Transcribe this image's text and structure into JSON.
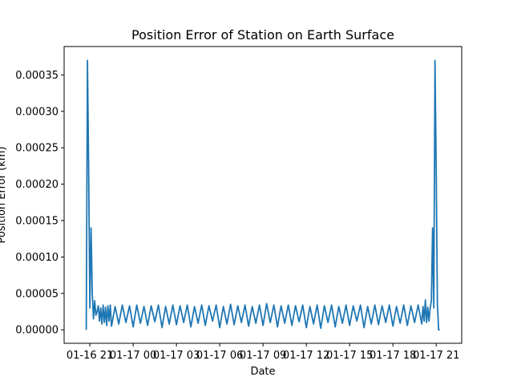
{
  "chart_data": {
    "type": "line",
    "title": "Position Error of Station on Earth Surface",
    "xlabel": "Date",
    "ylabel": "Position Error (km)",
    "x_tick_labels": [
      "01-16 21",
      "01-17 00",
      "01-17 03",
      "01-17 06",
      "01-17 09",
      "01-17 12",
      "01-17 15",
      "01-17 18",
      "01-17 21"
    ],
    "y_tick_labels": [
      "0.00000",
      "0.00005",
      "0.00010",
      "0.00015",
      "0.00020",
      "0.00025",
      "0.00030",
      "0.00035"
    ],
    "xlim": [
      "2024-01-16 19:13",
      "2024-01-17 22:46"
    ],
    "ylim": [
      -1.85e-05,
      0.000389
    ],
    "grid": false,
    "legend": "none",
    "series": [
      {
        "color": "#1f77b4",
        "x": [
          "2024-01-16 20:45",
          "2024-01-16 20:50",
          "2024-01-16 20:55",
          "2024-01-16 21:00",
          "2024-01-16 21:05",
          "2024-01-16 21:10",
          "2024-01-16 21:15",
          "2024-01-16 21:20",
          "2024-01-16 21:25",
          "2024-01-16 21:30",
          "2024-01-16 21:35",
          "2024-01-16 21:40",
          "2024-01-16 21:45",
          "2024-01-16 21:50",
          "2024-01-16 21:55",
          "2024-01-16 22:00",
          "2024-01-16 22:05",
          "2024-01-16 22:10",
          "2024-01-16 22:15",
          "2024-01-16 22:20",
          "2024-01-16 22:25",
          "2024-01-16 22:30",
          "2024-01-16 22:45",
          "2024-01-16 23:00",
          "2024-01-16 23:15",
          "2024-01-16 23:30",
          "2024-01-16 23:45",
          "2024-01-17 00:00",
          "2024-01-17 00:15",
          "2024-01-17 00:30",
          "2024-01-17 00:45",
          "2024-01-17 01:00",
          "2024-01-17 01:15",
          "2024-01-17 01:30",
          "2024-01-17 01:45",
          "2024-01-17 02:00",
          "2024-01-17 02:15",
          "2024-01-17 02:30",
          "2024-01-17 02:45",
          "2024-01-17 03:00",
          "2024-01-17 03:15",
          "2024-01-17 03:30",
          "2024-01-17 03:45",
          "2024-01-17 04:00",
          "2024-01-17 04:15",
          "2024-01-17 04:30",
          "2024-01-17 04:45",
          "2024-01-17 05:00",
          "2024-01-17 05:15",
          "2024-01-17 05:30",
          "2024-01-17 05:45",
          "2024-01-17 06:00",
          "2024-01-17 06:15",
          "2024-01-17 06:30",
          "2024-01-17 06:45",
          "2024-01-17 07:00",
          "2024-01-17 07:15",
          "2024-01-17 07:30",
          "2024-01-17 07:45",
          "2024-01-17 08:00",
          "2024-01-17 08:15",
          "2024-01-17 08:30",
          "2024-01-17 08:45",
          "2024-01-17 09:00",
          "2024-01-17 09:15",
          "2024-01-17 09:30",
          "2024-01-17 09:45",
          "2024-01-17 10:00",
          "2024-01-17 10:15",
          "2024-01-17 10:30",
          "2024-01-17 10:45",
          "2024-01-17 11:00",
          "2024-01-17 11:15",
          "2024-01-17 11:30",
          "2024-01-17 11:45",
          "2024-01-17 12:00",
          "2024-01-17 12:15",
          "2024-01-17 12:30",
          "2024-01-17 12:45",
          "2024-01-17 13:00",
          "2024-01-17 13:15",
          "2024-01-17 13:30",
          "2024-01-17 13:45",
          "2024-01-17 14:00",
          "2024-01-17 14:15",
          "2024-01-17 14:30",
          "2024-01-17 14:45",
          "2024-01-17 15:00",
          "2024-01-17 15:15",
          "2024-01-17 15:30",
          "2024-01-17 15:45",
          "2024-01-17 16:00",
          "2024-01-17 16:15",
          "2024-01-17 16:30",
          "2024-01-17 16:45",
          "2024-01-17 17:00",
          "2024-01-17 17:15",
          "2024-01-17 17:30",
          "2024-01-17 17:45",
          "2024-01-17 18:00",
          "2024-01-17 18:15",
          "2024-01-17 18:30",
          "2024-01-17 18:45",
          "2024-01-17 19:00",
          "2024-01-17 19:15",
          "2024-01-17 19:30",
          "2024-01-17 19:45",
          "2024-01-17 20:00",
          "2024-01-17 20:05",
          "2024-01-17 20:10",
          "2024-01-17 20:15",
          "2024-01-17 20:20",
          "2024-01-17 20:25",
          "2024-01-17 20:30",
          "2024-01-17 20:35",
          "2024-01-17 20:40",
          "2024-01-17 20:45",
          "2024-01-17 20:50",
          "2024-01-17 20:55",
          "2024-01-17 21:00",
          "2024-01-17 21:05",
          "2024-01-17 21:10",
          "2024-01-17 21:15"
        ],
        "y": [
          0.0,
          0.00037,
          0.00022,
          3e-05,
          0.00014,
          5e-05,
          1.5e-05,
          4e-05,
          2e-05,
          2.5e-05,
          3.3e-05,
          1.2e-05,
          3e-05,
          8e-06,
          3.4e-05,
          1e-05,
          3.1e-05,
          6e-06,
          3.3e-05,
          1.2e-05,
          3.4e-05,
          5e-06,
          3.2e-05,
          8e-06,
          3.4e-05,
          1e-05,
          3.3e-05,
          4e-06,
          3.4e-05,
          9e-06,
          3.2e-05,
          6e-06,
          3.3e-05,
          1.1e-05,
          3.4e-05,
          3e-06,
          3.2e-05,
          8e-06,
          3.4e-05,
          7e-06,
          3.3e-05,
          1e-05,
          3.4e-05,
          4e-06,
          3.2e-05,
          9e-06,
          3.4e-05,
          6e-06,
          3.3e-05,
          1.2e-05,
          3.4e-05,
          3e-06,
          3.2e-05,
          8e-06,
          3.5e-05,
          7e-06,
          3.3e-05,
          1e-05,
          3.4e-05,
          5e-06,
          3.2e-05,
          9e-06,
          3.4e-05,
          6e-06,
          3.6e-05,
          1e-05,
          3.4e-05,
          4e-06,
          3.3e-05,
          9e-06,
          3.4e-05,
          6e-06,
          3.3e-05,
          1.1e-05,
          3.4e-05,
          3e-06,
          3.2e-05,
          8e-06,
          3.4e-05,
          2e-06,
          3.3e-05,
          1e-05,
          3.4e-05,
          4e-06,
          3.2e-05,
          9e-06,
          3.4e-05,
          6e-06,
          3.3e-05,
          1.2e-05,
          3.4e-05,
          3e-06,
          3.2e-05,
          8e-06,
          3.4e-05,
          7e-06,
          3.3e-05,
          1e-05,
          3.4e-05,
          5e-06,
          3.2e-05,
          9e-06,
          3.4e-05,
          6e-06,
          3.3e-05,
          1e-05,
          3.4e-05,
          8e-06,
          3.2e-05,
          1.2e-05,
          4.1e-05,
          1e-05,
          3.1e-05,
          1.2e-05,
          3e-05,
          4e-05,
          0.00014,
          3e-05,
          0.00037,
          0.00022,
          3.5e-05,
          0.0,
          0.0
        ]
      }
    ]
  }
}
